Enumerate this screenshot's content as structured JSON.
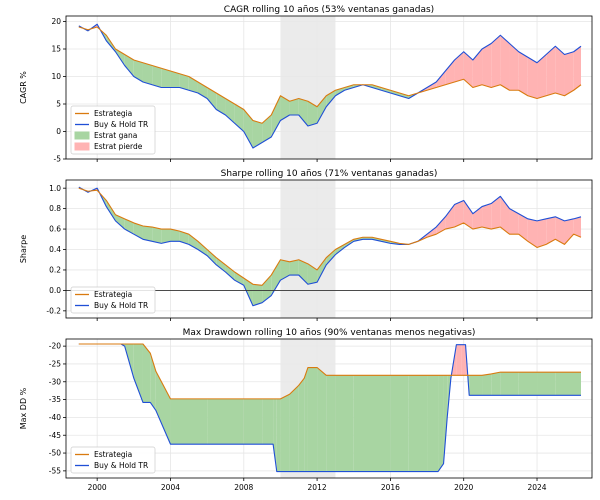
{
  "colors": {
    "estrategia": "#d97a0f",
    "buyhold": "#1f4fd6",
    "gana": "#a8d5a2",
    "pierde": "#ffb3b3",
    "shade": "#e8e8e8",
    "grid": "#e6e6e6"
  },
  "chart_data": [
    {
      "type": "area",
      "title": "CAGR rolling 10 años (53% ventanas ganadas)",
      "ylabel": "CAGR %",
      "ylim": [
        -5,
        21
      ],
      "yticks": [
        -5,
        0,
        5,
        10,
        15,
        20
      ],
      "xlim": [
        1998.3,
        2027.0
      ],
      "xticks": [
        2000,
        2004,
        2008,
        2012,
        2016,
        2020,
        2024
      ],
      "shaded_x": [
        2010.0,
        2013.0
      ],
      "zero_line": false,
      "legend": "lower-left",
      "legend_items": [
        {
          "label": "Estrategia",
          "kind": "line",
          "color": "#d97a0f"
        },
        {
          "label": "Buy & Hold TR",
          "kind": "line",
          "color": "#1f4fd6"
        },
        {
          "label": "Estrat gana",
          "kind": "patch",
          "color": "#a8d5a2"
        },
        {
          "label": "Estrat pierde",
          "kind": "patch",
          "color": "#ffb3b3"
        }
      ],
      "fill_between": true,
      "x": [
        1999.0,
        1999.5,
        2000.0,
        2000.5,
        2001.0,
        2001.5,
        2002.0,
        2002.5,
        2003.0,
        2003.5,
        2004.0,
        2004.5,
        2005.0,
        2005.5,
        2006.0,
        2006.5,
        2007.0,
        2007.5,
        2008.0,
        2008.5,
        2009.0,
        2009.5,
        2010.0,
        2010.5,
        2011.0,
        2011.5,
        2012.0,
        2012.5,
        2013.0,
        2013.5,
        2014.0,
        2014.5,
        2015.0,
        2015.5,
        2016.0,
        2016.5,
        2017.0,
        2017.5,
        2018.0,
        2018.5,
        2019.0,
        2019.5,
        2020.0,
        2020.5,
        2021.0,
        2021.5,
        2022.0,
        2022.5,
        2023.0,
        2023.5,
        2024.0,
        2024.5,
        2025.0,
        2025.5,
        2026.0,
        2026.4
      ],
      "series": [
        {
          "name": "Estrategia",
          "color": "#d97a0f",
          "values": [
            19.0,
            18.5,
            19.0,
            17.5,
            15.0,
            14.0,
            13.0,
            12.5,
            12.0,
            11.5,
            11.0,
            10.5,
            10.0,
            9.0,
            8.0,
            7.0,
            6.0,
            5.0,
            4.0,
            2.0,
            1.5,
            3.0,
            6.5,
            5.5,
            6.0,
            5.5,
            4.5,
            6.5,
            7.5,
            8.0,
            8.5,
            8.5,
            8.5,
            8.0,
            7.5,
            7.0,
            6.5,
            7.0,
            7.5,
            8.0,
            8.5,
            9.0,
            9.5,
            8.0,
            8.5,
            8.0,
            8.5,
            7.5,
            7.5,
            6.5,
            6.0,
            6.5,
            7.0,
            6.5,
            7.5,
            8.5
          ]
        },
        {
          "name": "Buy & Hold TR",
          "color": "#1f4fd6",
          "values": [
            19.2,
            18.3,
            19.5,
            16.5,
            14.5,
            12.0,
            10.0,
            9.0,
            8.5,
            8.0,
            8.0,
            8.0,
            7.5,
            7.0,
            6.0,
            4.0,
            3.0,
            1.5,
            0.0,
            -3.0,
            -2.0,
            -1.0,
            2.0,
            3.0,
            3.0,
            1.0,
            1.5,
            4.5,
            6.5,
            7.5,
            8.0,
            8.5,
            8.0,
            7.5,
            7.0,
            6.5,
            6.0,
            7.0,
            8.0,
            9.0,
            11.0,
            13.0,
            14.5,
            13.0,
            15.0,
            16.0,
            17.5,
            16.0,
            14.5,
            13.5,
            12.5,
            14.0,
            15.5,
            14.0,
            14.5,
            15.5
          ]
        }
      ]
    },
    {
      "type": "area",
      "title": "Sharpe rolling 10 años (71% ventanas ganadas)",
      "ylabel": "Sharpe",
      "ylim": [
        -0.27,
        1.08
      ],
      "yticks": [
        -0.2,
        0.0,
        0.2,
        0.4,
        0.6,
        0.8,
        1.0
      ],
      "xlim": [
        1998.3,
        2027.0
      ],
      "xticks": [
        2000,
        2004,
        2008,
        2012,
        2016,
        2020,
        2024
      ],
      "shaded_x": [
        2010.0,
        2013.0
      ],
      "zero_line": true,
      "legend": "lower-left",
      "legend_items": [
        {
          "label": "Estrategia",
          "kind": "line",
          "color": "#d97a0f"
        },
        {
          "label": "Buy & Hold TR",
          "kind": "line",
          "color": "#1f4fd6"
        }
      ],
      "fill_between": true,
      "x": [
        1999.0,
        1999.5,
        2000.0,
        2000.5,
        2001.0,
        2001.5,
        2002.0,
        2002.5,
        2003.0,
        2003.5,
        2004.0,
        2004.5,
        2005.0,
        2005.5,
        2006.0,
        2006.5,
        2007.0,
        2007.5,
        2008.0,
        2008.5,
        2009.0,
        2009.5,
        2010.0,
        2010.5,
        2011.0,
        2011.5,
        2012.0,
        2012.5,
        2013.0,
        2013.5,
        2014.0,
        2014.5,
        2015.0,
        2015.5,
        2016.0,
        2016.5,
        2017.0,
        2017.5,
        2018.0,
        2018.5,
        2019.0,
        2019.5,
        2020.0,
        2020.5,
        2021.0,
        2021.5,
        2022.0,
        2022.5,
        2023.0,
        2023.5,
        2024.0,
        2024.5,
        2025.0,
        2025.5,
        2026.0,
        2026.4
      ],
      "series": [
        {
          "name": "Estrategia",
          "color": "#d97a0f",
          "values": [
            1.0,
            0.97,
            0.98,
            0.88,
            0.74,
            0.7,
            0.66,
            0.63,
            0.62,
            0.6,
            0.6,
            0.58,
            0.55,
            0.48,
            0.4,
            0.32,
            0.25,
            0.18,
            0.12,
            0.06,
            0.05,
            0.15,
            0.3,
            0.28,
            0.3,
            0.26,
            0.2,
            0.32,
            0.4,
            0.45,
            0.5,
            0.52,
            0.52,
            0.5,
            0.48,
            0.46,
            0.45,
            0.48,
            0.52,
            0.55,
            0.6,
            0.62,
            0.66,
            0.6,
            0.62,
            0.6,
            0.62,
            0.55,
            0.55,
            0.48,
            0.42,
            0.45,
            0.5,
            0.45,
            0.55,
            0.52
          ]
        },
        {
          "name": "Buy & Hold TR",
          "color": "#1f4fd6",
          "values": [
            1.01,
            0.96,
            1.0,
            0.82,
            0.68,
            0.6,
            0.55,
            0.5,
            0.48,
            0.46,
            0.48,
            0.48,
            0.45,
            0.4,
            0.34,
            0.25,
            0.18,
            0.1,
            0.05,
            -0.15,
            -0.12,
            -0.05,
            0.1,
            0.15,
            0.15,
            0.06,
            0.08,
            0.25,
            0.35,
            0.42,
            0.48,
            0.5,
            0.5,
            0.48,
            0.46,
            0.45,
            0.45,
            0.48,
            0.55,
            0.62,
            0.72,
            0.84,
            0.88,
            0.75,
            0.82,
            0.85,
            0.92,
            0.8,
            0.75,
            0.7,
            0.68,
            0.7,
            0.72,
            0.68,
            0.7,
            0.72
          ]
        }
      ]
    },
    {
      "type": "area",
      "title": "Max Drawdown rolling 10 años (90% ventanas menos negativas)",
      "ylabel": "Max DD %",
      "ylim": [
        -57,
        -18
      ],
      "yticks": [
        -55,
        -50,
        -45,
        -40,
        -35,
        -30,
        -25,
        -20
      ],
      "xlim": [
        1998.3,
        2027.0
      ],
      "xticks": [
        2000,
        2004,
        2008,
        2012,
        2016,
        2020,
        2024
      ],
      "xticklabels": [
        "2000",
        "2004",
        "2008",
        "2012",
        "2016",
        "2020",
        "2024"
      ],
      "shaded_x": [
        2010.0,
        2013.0
      ],
      "zero_line": false,
      "legend": "lower-left",
      "legend_items": [
        {
          "label": "Estrategia",
          "kind": "line",
          "color": "#d97a0f"
        },
        {
          "label": "Buy & Hold TR",
          "kind": "line",
          "color": "#1f4fd6"
        }
      ],
      "fill_between": true,
      "x": [
        1999.0,
        2001.3,
        2001.5,
        2002.0,
        2002.5,
        2002.9,
        2003.2,
        2004.0,
        2006.0,
        2008.0,
        2009.0,
        2009.6,
        2009.8,
        2010.0,
        2010.5,
        2011.0,
        2011.3,
        2011.5,
        2012.0,
        2012.5,
        2013.0,
        2014.0,
        2016.0,
        2017.0,
        2018.0,
        2018.6,
        2018.9,
        2019.1,
        2019.3,
        2019.6,
        2019.9,
        2020.1,
        2020.3,
        2021.0,
        2021.5,
        2022.0,
        2023.0,
        2024.0,
        2025.0,
        2026.4
      ],
      "series": [
        {
          "name": "Estrategia",
          "color": "#d97a0f",
          "values": [
            -19.4,
            -19.4,
            -19.4,
            -19.4,
            -19.4,
            -22.0,
            -27.0,
            -34.8,
            -34.8,
            -34.8,
            -34.8,
            -34.8,
            -34.8,
            -34.8,
            -33.5,
            -31.0,
            -29.0,
            -26.0,
            -26.0,
            -28.2,
            -28.2,
            -28.2,
            -28.2,
            -28.2,
            -28.2,
            -28.2,
            -28.2,
            -28.2,
            -28.2,
            -28.2,
            -28.2,
            -28.2,
            -28.2,
            -28.2,
            -27.8,
            -27.3,
            -27.3,
            -27.3,
            -27.3,
            -27.3
          ]
        },
        {
          "name": "Buy & Hold TR",
          "color": "#1f4fd6",
          "values": [
            -19.4,
            -19.4,
            -20.0,
            -29.0,
            -35.8,
            -35.8,
            -38.0,
            -47.5,
            -47.5,
            -47.5,
            -47.5,
            -47.5,
            -55.2,
            -55.2,
            -55.2,
            -55.2,
            -55.2,
            -55.2,
            -55.2,
            -55.2,
            -55.2,
            -55.2,
            -55.2,
            -55.2,
            -55.2,
            -55.2,
            -53.0,
            -40.0,
            -29.0,
            -19.6,
            -19.6,
            -19.6,
            -33.8,
            -33.8,
            -33.8,
            -33.8,
            -33.8,
            -33.8,
            -33.8,
            -33.8
          ]
        }
      ]
    }
  ]
}
